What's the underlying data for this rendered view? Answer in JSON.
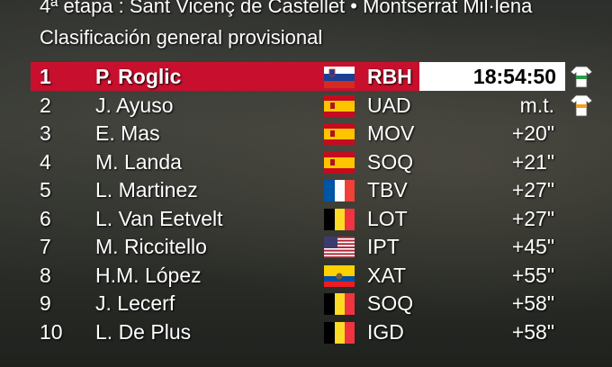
{
  "header": {
    "title": "4ª etapa : Sant Vicenç de Castellet • Montserrat Mil·lena",
    "subtitle": "Clasificación general provisional"
  },
  "rows": [
    {
      "position": "1",
      "rider": "P. Roglic",
      "team": "RBH",
      "time": "18:54:50"
    },
    {
      "position": "2",
      "rider": "J. Ayuso",
      "team": "UAD",
      "time": "m.t."
    },
    {
      "position": "3",
      "rider": "E. Mas",
      "team": "MOV",
      "time": "+20\""
    },
    {
      "position": "4",
      "rider": "M. Landa",
      "team": "SOQ",
      "time": "+21\""
    },
    {
      "position": "5",
      "rider": "L. Martinez",
      "team": "TBV",
      "time": "+27\""
    },
    {
      "position": "6",
      "rider": "L. Van Eetvelt",
      "team": "LOT",
      "time": "+27\""
    },
    {
      "position": "7",
      "rider": "M. Riccitello",
      "team": "IPT",
      "time": "+45\""
    },
    {
      "position": "8",
      "rider": "H.M. López",
      "team": "XAT",
      "time": "+55\""
    },
    {
      "position": "9",
      "rider": "J. Lecerf",
      "team": "SOQ",
      "time": "+58\""
    },
    {
      "position": "10",
      "rider": "L. De Plus",
      "team": "IGD",
      "time": "+58\""
    }
  ]
}
